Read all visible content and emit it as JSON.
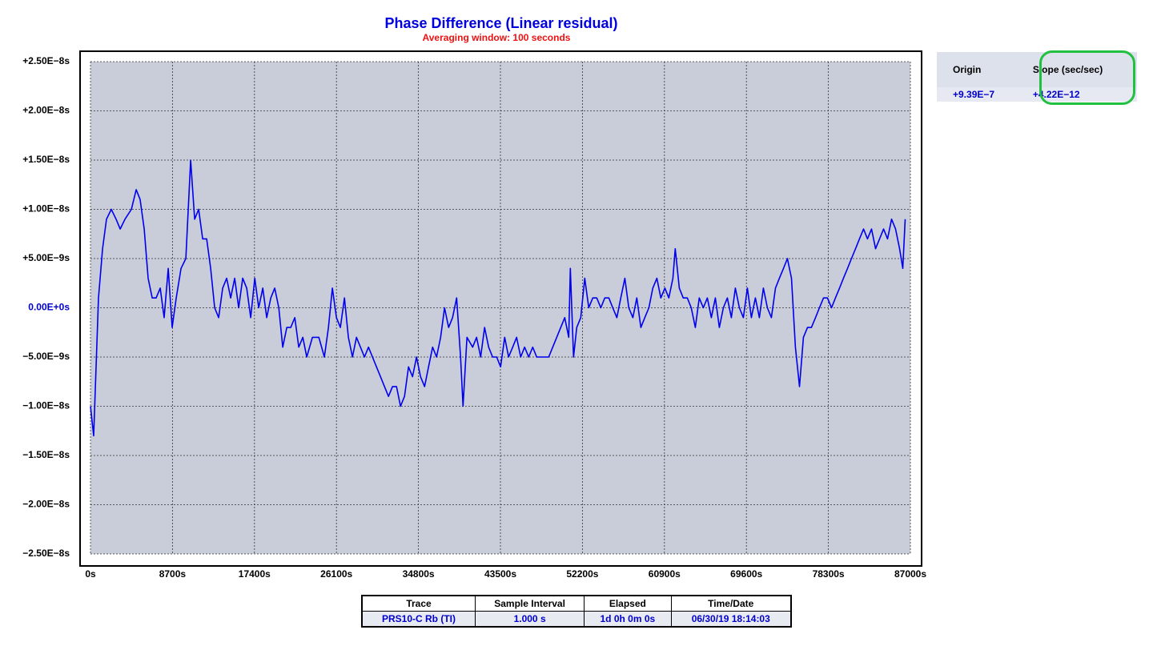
{
  "chart_data": {
    "type": "line",
    "title": "Phase Difference (Linear residual)",
    "subtitle": "Averaging window: 100 seconds",
    "x": [
      0,
      340,
      850,
      1280,
      1700,
      2210,
      2720,
      3150,
      3660,
      4340,
      4850,
      5270,
      5700,
      6120,
      6550,
      6970,
      7400,
      7820,
      8250,
      8670,
      9100,
      9610,
      10120,
      10630,
      11050,
      11480,
      11900,
      12330,
      12750,
      13180,
      13600,
      14030,
      14450,
      14880,
      15300,
      15730,
      16150,
      16580,
      17000,
      17430,
      17850,
      18280,
      18700,
      19130,
      19550,
      19980,
      20400,
      20830,
      21250,
      21680,
      22100,
      22530,
      22950,
      23550,
      24230,
      24820,
      25250,
      25670,
      26100,
      26520,
      26950,
      27370,
      27800,
      28220,
      28650,
      29070,
      29500,
      29920,
      30350,
      30770,
      31200,
      31620,
      32050,
      32470,
      32900,
      33320,
      33750,
      34170,
      34600,
      35020,
      35450,
      35870,
      36300,
      36720,
      37150,
      37570,
      38000,
      38420,
      38850,
      39270,
      39530,
      39950,
      40550,
      40970,
      41400,
      41820,
      42250,
      42670,
      43100,
      43520,
      43950,
      44370,
      44800,
      45220,
      45650,
      46070,
      46500,
      46920,
      47350,
      47770,
      48200,
      48620,
      49050,
      49470,
      49900,
      50320,
      50750,
      50920,
      51260,
      51600,
      52020,
      52450,
      52870,
      53300,
      53720,
      54150,
      54570,
      55000,
      55420,
      55850,
      56270,
      56700,
      57120,
      57550,
      57970,
      58400,
      58820,
      59250,
      59670,
      60100,
      60520,
      60950,
      61370,
      61800,
      62050,
      62480,
      62900,
      63330,
      63750,
      64180,
      64600,
      65030,
      65450,
      65880,
      66300,
      66730,
      67150,
      67580,
      68000,
      68430,
      68850,
      69280,
      69700,
      70130,
      70550,
      70980,
      71400,
      71830,
      72250,
      72680,
      73100,
      73530,
      73950,
      74380,
      74800,
      75230,
      75650,
      76080,
      76500,
      76930,
      77350,
      77780,
      78200,
      78630,
      79050,
      79480,
      79900,
      80330,
      80750,
      81180,
      81600,
      82030,
      82450,
      82880,
      83300,
      83730,
      84150,
      84580,
      85000,
      85430,
      85850,
      86190,
      86450
    ],
    "series": [
      {
        "color": "#0000ee",
        "values": [
          -1e-08,
          -1.3e-08,
          1e-09,
          6e-09,
          9e-09,
          1e-08,
          9e-09,
          8e-09,
          9e-09,
          1e-08,
          1.2e-08,
          1.1e-08,
          8e-09,
          3e-09,
          1e-09,
          1e-09,
          2e-09,
          -1e-09,
          4e-09,
          -2e-09,
          1e-09,
          4e-09,
          5e-09,
          1.5e-08,
          9e-09,
          1e-08,
          7e-09,
          7e-09,
          4e-09,
          0,
          -1e-09,
          2e-09,
          3e-09,
          1e-09,
          3e-09,
          0,
          3e-09,
          2e-09,
          -1e-09,
          3e-09,
          0,
          2e-09,
          -1e-09,
          1e-09,
          2e-09,
          0,
          -4e-09,
          -2e-09,
          -2e-09,
          -1e-09,
          -4e-09,
          -3e-09,
          -5e-09,
          -3e-09,
          -3e-09,
          -5e-09,
          -2e-09,
          2e-09,
          -1e-09,
          -2e-09,
          1e-09,
          -3e-09,
          -5e-09,
          -3e-09,
          -4e-09,
          -5e-09,
          -4e-09,
          -5e-09,
          -6e-09,
          -7e-09,
          -8e-09,
          -9e-09,
          -8e-09,
          -8e-09,
          -1e-08,
          -9e-09,
          -6e-09,
          -7e-09,
          -5e-09,
          -7e-09,
          -8e-09,
          -6e-09,
          -4e-09,
          -5e-09,
          -3e-09,
          0,
          -2e-09,
          -1e-09,
          1e-09,
          -5e-09,
          -1e-08,
          -3e-09,
          -4e-09,
          -3e-09,
          -5e-09,
          -2e-09,
          -4e-09,
          -5e-09,
          -5e-09,
          -6e-09,
          -3e-09,
          -5e-09,
          -4e-09,
          -3e-09,
          -5e-09,
          -4e-09,
          -5e-09,
          -4e-09,
          -5e-09,
          -5e-09,
          -5e-09,
          -5e-09,
          -4e-09,
          -3e-09,
          -2e-09,
          -1e-09,
          -3e-09,
          4e-09,
          -5e-09,
          -2e-09,
          -1e-09,
          3e-09,
          0,
          1e-09,
          1e-09,
          0,
          1e-09,
          1e-09,
          0,
          -1e-09,
          1e-09,
          3e-09,
          0,
          -1e-09,
          1e-09,
          -2e-09,
          -1e-09,
          0,
          2e-09,
          3e-09,
          1e-09,
          2e-09,
          1e-09,
          3e-09,
          6e-09,
          2e-09,
          1e-09,
          1e-09,
          0,
          -2e-09,
          1e-09,
          0,
          1e-09,
          -1e-09,
          1e-09,
          -2e-09,
          0,
          1e-09,
          -1e-09,
          2e-09,
          0,
          -1e-09,
          2e-09,
          -1e-09,
          1e-09,
          -1e-09,
          2e-09,
          0,
          -1e-09,
          2e-09,
          3e-09,
          4e-09,
          5e-09,
          3e-09,
          -4e-09,
          -8e-09,
          -3e-09,
          -2e-09,
          -2e-09,
          -1e-09,
          0,
          1e-09,
          1e-09,
          0,
          1e-09,
          2e-09,
          3e-09,
          4e-09,
          5e-09,
          6e-09,
          7e-09,
          8e-09,
          7e-09,
          8e-09,
          6e-09,
          7e-09,
          8e-09,
          7e-09,
          9e-09,
          8e-09,
          6e-09,
          4e-09,
          9e-09
        ]
      }
    ],
    "xlim": [
      0,
      87000
    ],
    "xticks": [
      {
        "value": 0,
        "label": "0s"
      },
      {
        "value": 8700,
        "label": "8700s"
      },
      {
        "value": 17400,
        "label": "17400s"
      },
      {
        "value": 26100,
        "label": "26100s"
      },
      {
        "value": 34800,
        "label": "34800s"
      },
      {
        "value": 43500,
        "label": "43500s"
      },
      {
        "value": 52200,
        "label": "52200s"
      },
      {
        "value": 60900,
        "label": "60900s"
      },
      {
        "value": 69600,
        "label": "69600s"
      },
      {
        "value": 78300,
        "label": "78300s"
      },
      {
        "value": 87000,
        "label": "87000s"
      }
    ],
    "ylim": [
      -2.5e-08,
      2.5e-08
    ],
    "yticks": [
      {
        "value": -2.5e-08,
        "label": "−2.50E−8s"
      },
      {
        "value": -2e-08,
        "label": "−2.00E−8s"
      },
      {
        "value": -1.5e-08,
        "label": "−1.50E−8s"
      },
      {
        "value": -1e-08,
        "label": "−1.00E−8s"
      },
      {
        "value": -5e-09,
        "label": "−5.00E−9s"
      },
      {
        "value": 0,
        "label": "0.00E+0s"
      },
      {
        "value": 5e-09,
        "label": "+5.00E−9s"
      },
      {
        "value": 1e-08,
        "label": "+1.00E−8s"
      },
      {
        "value": 1.5e-08,
        "label": "+1.50E−8s"
      },
      {
        "value": 2e-08,
        "label": "+2.00E−8s"
      },
      {
        "value": 2.5e-08,
        "label": "+2.50E−8s"
      }
    ],
    "grid": true
  },
  "side_table": {
    "headers": [
      "Origin",
      "Slope (sec/sec)"
    ],
    "rows": [
      [
        "+9.39E−7",
        "+4.22E−12"
      ]
    ]
  },
  "info_table": {
    "headers": [
      "Trace",
      "Sample Interval",
      "Elapsed",
      "Time/Date"
    ],
    "rows": [
      [
        "PRS10-C Rb (TI)",
        "1.000 s",
        "1d 0h 0m 0s",
        "06/30/19 18:14:03"
      ]
    ]
  }
}
